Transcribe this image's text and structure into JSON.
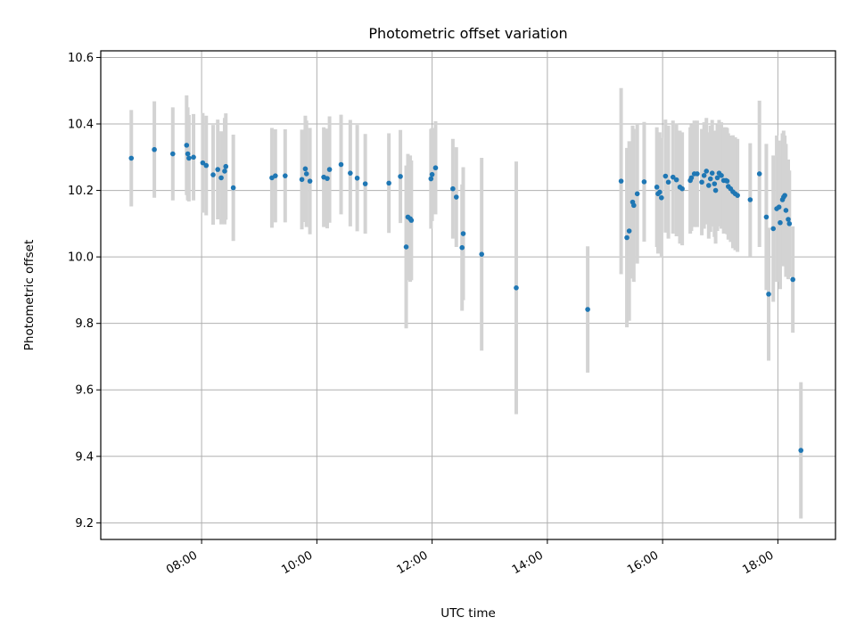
{
  "chart_data": {
    "type": "scatter",
    "title": "Photometric offset variation",
    "xlabel": "UTC time",
    "ylabel": "Photometric offset",
    "x_unit": "hours (UTC)",
    "xlim": [
      6.25,
      19.0
    ],
    "ylim": [
      9.15,
      10.62
    ],
    "x_ticks": [
      8,
      10,
      12,
      14,
      16,
      18
    ],
    "x_tick_labels": [
      "08:00",
      "10:00",
      "12:00",
      "14:00",
      "16:00",
      "18:00"
    ],
    "y_ticks": [
      9.2,
      9.4,
      9.6,
      9.8,
      10.0,
      10.2,
      10.4,
      10.6
    ],
    "y_tick_labels": [
      "9.2",
      "9.4",
      "9.6",
      "9.8",
      "10.0",
      "10.2",
      "10.4",
      "10.6"
    ],
    "grid": true,
    "colors": {
      "marker": "#1f77b4",
      "errorbar": "#d3d3d3",
      "grid": "#b0b0b0"
    },
    "points": [
      [
        6.78,
        10.297,
        0.145
      ],
      [
        7.18,
        10.323,
        0.145
      ],
      [
        7.5,
        10.31,
        0.14
      ],
      [
        7.74,
        10.336,
        0.15
      ],
      [
        7.76,
        10.31,
        0.14
      ],
      [
        7.78,
        10.297,
        0.13
      ],
      [
        7.86,
        10.3,
        0.13
      ],
      [
        8.02,
        10.283,
        0.15
      ],
      [
        8.08,
        10.275,
        0.15
      ],
      [
        8.2,
        10.247,
        0.15
      ],
      [
        8.28,
        10.263,
        0.15
      ],
      [
        8.34,
        10.238,
        0.14
      ],
      [
        8.4,
        10.258,
        0.16
      ],
      [
        8.42,
        10.272,
        0.16
      ],
      [
        8.55,
        10.208,
        0.16
      ],
      [
        9.22,
        10.238,
        0.15
      ],
      [
        9.28,
        10.244,
        0.14
      ],
      [
        9.45,
        10.244,
        0.14
      ],
      [
        9.74,
        10.233,
        0.15
      ],
      [
        9.8,
        10.265,
        0.16
      ],
      [
        9.82,
        10.25,
        0.16
      ],
      [
        9.88,
        10.228,
        0.16
      ],
      [
        10.12,
        10.24,
        0.15
      ],
      [
        10.18,
        10.236,
        0.15
      ],
      [
        10.22,
        10.263,
        0.16
      ],
      [
        10.42,
        10.278,
        0.15
      ],
      [
        10.58,
        10.252,
        0.16
      ],
      [
        10.7,
        10.237,
        0.16
      ],
      [
        10.84,
        10.22,
        0.15
      ],
      [
        11.25,
        10.222,
        0.15
      ],
      [
        11.45,
        10.242,
        0.14
      ],
      [
        11.55,
        10.03,
        0.245
      ],
      [
        11.58,
        10.12,
        0.19
      ],
      [
        11.62,
        10.115,
        0.19
      ],
      [
        11.64,
        10.11,
        0.18
      ],
      [
        11.98,
        10.235,
        0.15
      ],
      [
        12.0,
        10.248,
        0.14
      ],
      [
        12.06,
        10.268,
        0.14
      ],
      [
        12.36,
        10.205,
        0.15
      ],
      [
        12.42,
        10.18,
        0.15
      ],
      [
        12.52,
        10.028,
        0.19
      ],
      [
        12.54,
        10.07,
        0.2
      ],
      [
        12.86,
        10.008,
        0.29
      ],
      [
        13.46,
        9.907,
        0.38
      ],
      [
        14.7,
        9.842,
        0.19
      ],
      [
        15.28,
        10.228,
        0.28
      ],
      [
        15.38,
        10.058,
        0.27
      ],
      [
        15.42,
        10.078,
        0.27
      ],
      [
        15.48,
        10.165,
        0.23
      ],
      [
        15.5,
        10.155,
        0.23
      ],
      [
        15.56,
        10.19,
        0.21
      ],
      [
        15.68,
        10.226,
        0.18
      ],
      [
        15.9,
        10.21,
        0.18
      ],
      [
        15.92,
        10.19,
        0.18
      ],
      [
        15.95,
        10.195,
        0.18
      ],
      [
        15.98,
        10.178,
        0.18
      ],
      [
        16.05,
        10.243,
        0.17
      ],
      [
        16.1,
        10.225,
        0.17
      ],
      [
        16.18,
        10.24,
        0.17
      ],
      [
        16.24,
        10.232,
        0.17
      ],
      [
        16.3,
        10.21,
        0.17
      ],
      [
        16.34,
        10.205,
        0.17
      ],
      [
        16.48,
        10.23,
        0.16
      ],
      [
        16.5,
        10.238,
        0.16
      ],
      [
        16.55,
        10.25,
        0.16
      ],
      [
        16.6,
        10.25,
        0.16
      ],
      [
        16.68,
        10.225,
        0.16
      ],
      [
        16.72,
        10.245,
        0.16
      ],
      [
        16.76,
        10.258,
        0.16
      ],
      [
        16.8,
        10.215,
        0.16
      ],
      [
        16.83,
        10.235,
        0.16
      ],
      [
        16.86,
        10.252,
        0.16
      ],
      [
        16.9,
        10.22,
        0.16
      ],
      [
        16.92,
        10.2,
        0.16
      ],
      [
        16.95,
        10.238,
        0.16
      ],
      [
        16.98,
        10.252,
        0.16
      ],
      [
        17.02,
        10.245,
        0.16
      ],
      [
        17.06,
        10.23,
        0.16
      ],
      [
        17.1,
        10.23,
        0.16
      ],
      [
        17.12,
        10.228,
        0.16
      ],
      [
        17.14,
        10.212,
        0.16
      ],
      [
        17.18,
        10.205,
        0.16
      ],
      [
        17.22,
        10.196,
        0.17
      ],
      [
        17.26,
        10.19,
        0.17
      ],
      [
        17.3,
        10.185,
        0.17
      ],
      [
        17.52,
        10.172,
        0.17
      ],
      [
        17.68,
        10.25,
        0.22
      ],
      [
        17.8,
        10.12,
        0.22
      ],
      [
        17.84,
        9.888,
        0.2
      ],
      [
        17.92,
        10.085,
        0.22
      ],
      [
        17.98,
        10.145,
        0.22
      ],
      [
        18.02,
        10.15,
        0.2
      ],
      [
        18.04,
        10.103,
        0.2
      ],
      [
        18.08,
        10.172,
        0.2
      ],
      [
        18.1,
        10.18,
        0.2
      ],
      [
        18.12,
        10.185,
        0.18
      ],
      [
        18.14,
        10.14,
        0.2
      ],
      [
        18.18,
        10.113,
        0.18
      ],
      [
        18.2,
        10.1,
        0.16
      ],
      [
        18.26,
        9.932,
        0.16
      ],
      [
        18.4,
        9.418,
        0.205
      ]
    ]
  }
}
